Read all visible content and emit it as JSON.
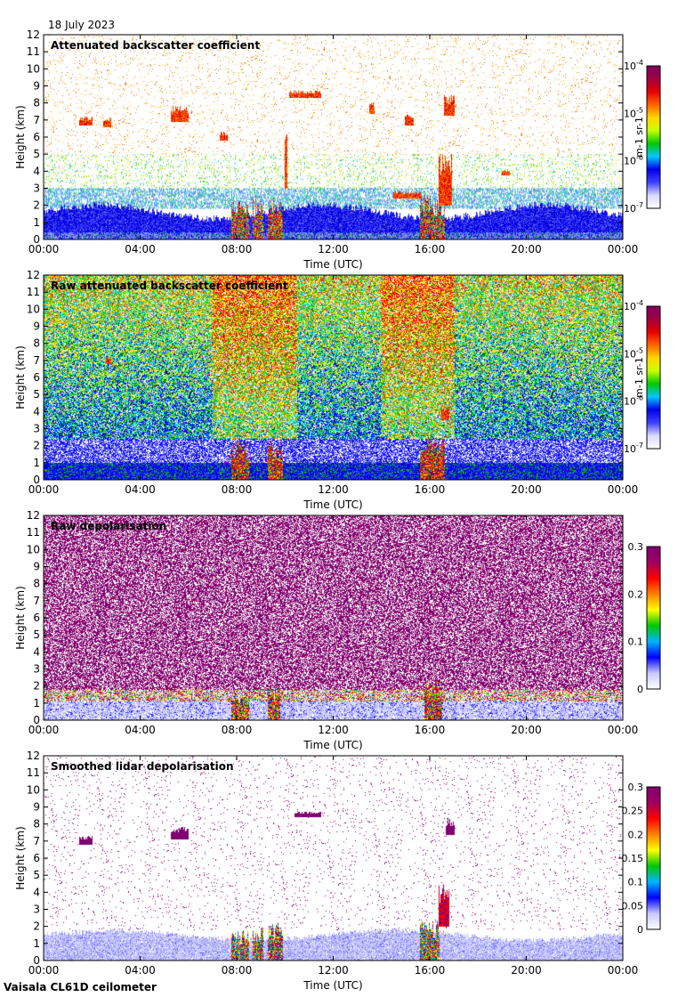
{
  "date_label": "18 July 2023",
  "instrument_label": "Vaisala CL61D ceilometer",
  "chart_data": [
    {
      "type": "heatmap",
      "title": "Attenuated backscatter coefficient",
      "xlabel": "Time (UTC)",
      "ylabel": "Height (km)",
      "x_ticks": [
        "00:00",
        "04:00",
        "08:00",
        "12:00",
        "16:00",
        "20:00",
        "00:00"
      ],
      "y_ticks": [
        "0",
        "1",
        "2",
        "3",
        "4",
        "5",
        "6",
        "7",
        "8",
        "9",
        "10",
        "11",
        "12"
      ],
      "ylim": [
        0,
        12
      ],
      "colorbar": {
        "scale": "log",
        "range": [
          1e-07,
          0.0001
        ],
        "unit_label": "m-1 sr-1",
        "ticks": [
          {
            "base": "10",
            "exp": "-4",
            "v": 0.0001
          },
          {
            "base": "10",
            "exp": "-5",
            "v": 1e-05
          },
          {
            "base": "10",
            "exp": "-6",
            "v": 1e-06
          },
          {
            "base": "10",
            "exp": "-7",
            "v": 1e-07
          }
        ]
      },
      "features": [
        {
          "desc": "aerosol boundary layer",
          "t": [
            0,
            24
          ],
          "h": [
            0,
            1.7
          ],
          "level": "blue"
        },
        {
          "desc": "cirrus patches",
          "t": [
            1.5,
            3
          ],
          "h": [
            6.7,
            7.3
          ],
          "level": "red"
        },
        {
          "desc": "cirrus patches",
          "t": [
            5.5,
            6.0
          ],
          "h": [
            7,
            7.7
          ],
          "level": "red"
        },
        {
          "desc": "cirrus",
          "t": [
            10.5,
            11.5
          ],
          "h": [
            8.3,
            8.7
          ],
          "level": "red"
        },
        {
          "desc": "convective cloud",
          "t": [
            8,
            9.8
          ],
          "h": [
            0,
            2.5
          ],
          "level": "red"
        },
        {
          "desc": "cloud",
          "t": [
            14.5,
            16.8
          ],
          "h": [
            0,
            3
          ],
          "level": "red"
        },
        {
          "desc": "cirrus",
          "t": [
            16.5,
            17
          ],
          "h": [
            7.5,
            8.3
          ],
          "level": "red"
        }
      ]
    },
    {
      "type": "heatmap",
      "title": "Raw attenuated backscatter coefficient",
      "xlabel": "Time (UTC)",
      "ylabel": "Height (km)",
      "x_ticks": [
        "00:00",
        "04:00",
        "08:00",
        "12:00",
        "16:00",
        "20:00",
        "00:00"
      ],
      "y_ticks": [
        "0",
        "1",
        "2",
        "3",
        "4",
        "5",
        "6",
        "7",
        "8",
        "9",
        "10",
        "11",
        "12"
      ],
      "ylim": [
        0,
        12
      ],
      "colorbar": {
        "scale": "log",
        "range": [
          1e-07,
          0.0001
        ],
        "unit_label": "m-1 sr-1",
        "ticks": [
          {
            "base": "10",
            "exp": "-4",
            "v": 0.0001
          },
          {
            "base": "10",
            "exp": "-5",
            "v": 1e-05
          },
          {
            "base": "10",
            "exp": "-6",
            "v": 1e-06
          },
          {
            "base": "10",
            "exp": "-7",
            "v": 1e-07
          }
        ]
      },
      "features": [
        {
          "desc": "daytime noise",
          "t": [
            7,
            17
          ],
          "h": [
            2,
            12
          ],
          "level": "yellow-red"
        },
        {
          "desc": "convective cloud",
          "t": [
            8,
            9.8
          ],
          "h": [
            0,
            2.5
          ],
          "level": "red"
        },
        {
          "desc": "cloud",
          "t": [
            15.5,
            16.8
          ],
          "h": [
            0,
            4
          ],
          "level": "red"
        }
      ]
    },
    {
      "type": "heatmap",
      "title": "Raw depolarisation",
      "xlabel": "Time (UTC)",
      "ylabel": "Height (km)",
      "x_ticks": [
        "00:00",
        "04:00",
        "08:00",
        "12:00",
        "16:00",
        "20:00",
        "00:00"
      ],
      "y_ticks": [
        "0",
        "1",
        "2",
        "3",
        "4",
        "5",
        "6",
        "7",
        "8",
        "9",
        "10",
        "11",
        "12"
      ],
      "ylim": [
        0,
        12
      ],
      "colorbar": {
        "scale": "linear",
        "range": [
          0,
          0.3
        ],
        "ticks": [
          {
            "label": "0.3",
            "v": 0.3
          },
          {
            "label": "0.2",
            "v": 0.2
          },
          {
            "label": "0.1",
            "v": 0.1
          },
          {
            "label": "0",
            "v": 0
          }
        ]
      },
      "features": [
        {
          "desc": "noise",
          "t": [
            0,
            24
          ],
          "h": [
            1.5,
            12
          ],
          "level": "purple"
        },
        {
          "desc": "boundary layer",
          "t": [
            0,
            24
          ],
          "h": [
            0,
            1.5
          ],
          "level": "light-blue"
        }
      ]
    },
    {
      "type": "heatmap",
      "title": "Smoothed lidar depolarisation",
      "xlabel": "Time (UTC)",
      "ylabel": "Height (km)",
      "x_ticks": [
        "00:00",
        "04:00",
        "08:00",
        "12:00",
        "16:00",
        "20:00",
        "00:00"
      ],
      "y_ticks": [
        "0",
        "1",
        "2",
        "3",
        "4",
        "5",
        "6",
        "7",
        "8",
        "9",
        "10",
        "11",
        "12"
      ],
      "ylim": [
        0,
        12
      ],
      "colorbar": {
        "scale": "linear",
        "range": [
          0,
          0.3
        ],
        "ticks": [
          {
            "label": "0.3",
            "v": 0.3
          },
          {
            "label": "0.25",
            "v": 0.25
          },
          {
            "label": "0.2",
            "v": 0.2
          },
          {
            "label": "0.15",
            "v": 0.15
          },
          {
            "label": "0.1",
            "v": 0.1
          },
          {
            "label": "0.05",
            "v": 0.05
          },
          {
            "label": "0",
            "v": 0
          }
        ]
      },
      "features": [
        {
          "desc": "boundary layer",
          "t": [
            0,
            24
          ],
          "h": [
            0,
            1.6
          ],
          "level": "light-blue"
        },
        {
          "desc": "convective cloud",
          "t": [
            8,
            9.8
          ],
          "h": [
            0,
            2
          ],
          "level": "multi"
        },
        {
          "desc": "cloud",
          "t": [
            15.5,
            16.8
          ],
          "h": [
            0,
            4
          ],
          "level": "multi"
        }
      ]
    }
  ],
  "colors": {
    "backscatter_cmap": [
      "#ffffff",
      "#d8d8ff",
      "#4040ff",
      "#0000e6",
      "#00c8ff",
      "#00c800",
      "#c8ff00",
      "#ffd700",
      "#ff6400",
      "#e60000",
      "#a00040",
      "#800060"
    ],
    "depol_cmap": [
      "#ffffff",
      "#c8c8ff",
      "#0000ff",
      "#00b4ff",
      "#00c800",
      "#ffff00",
      "#ff8000",
      "#ff0000",
      "#a00060",
      "#800070"
    ]
  }
}
